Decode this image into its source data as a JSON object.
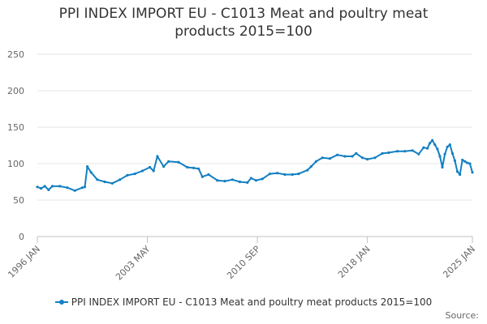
{
  "title_line1": "PPI INDEX IMPORT EU - C1013 Meat and poultry meat",
  "title_line2": "products 2015=100",
  "source_label": "Source:",
  "chart_data": {
    "type": "line",
    "title": "PPI INDEX IMPORT EU - C1013 Meat and poultry meat products 2015=100",
    "xlabel": "",
    "ylabel": "",
    "x_range": [
      "1996 JAN",
      "2025 JAN"
    ],
    "ylim": [
      0,
      250
    ],
    "y_ticks": [
      0,
      50,
      100,
      150,
      200,
      250
    ],
    "x_tick_labels": [
      "1996 JAN",
      "2003 MAY",
      "2010 SEP",
      "2018 JAN",
      "2025 JAN"
    ],
    "grid": true,
    "legend_position": "bottom",
    "series": [
      {
        "name": "PPI INDEX IMPORT EU - C1013 Meat and poultry meat products 2015=100",
        "color": "#1380c2",
        "points": [
          [
            "1996-01",
            68
          ],
          [
            "1996-04",
            66
          ],
          [
            "1996-07",
            69
          ],
          [
            "1996-10",
            64
          ],
          [
            "1997-01",
            69
          ],
          [
            "1997-07",
            69
          ],
          [
            "1998-01",
            67
          ],
          [
            "1998-07",
            63
          ],
          [
            "1999-01",
            67
          ],
          [
            "1999-03",
            68
          ],
          [
            "1999-05",
            96
          ],
          [
            "1999-08",
            88
          ],
          [
            "2000-01",
            78
          ],
          [
            "2000-07",
            75
          ],
          [
            "2001-01",
            73
          ],
          [
            "2001-07",
            78
          ],
          [
            "2002-01",
            84
          ],
          [
            "2002-07",
            86
          ],
          [
            "2003-01",
            90
          ],
          [
            "2003-07",
            95
          ],
          [
            "2003-10",
            90
          ],
          [
            "2004-01",
            110
          ],
          [
            "2004-06",
            96
          ],
          [
            "2004-10",
            103
          ],
          [
            "2005-06",
            102
          ],
          [
            "2006-01",
            95
          ],
          [
            "2006-06",
            94
          ],
          [
            "2006-10",
            93
          ],
          [
            "2007-01",
            82
          ],
          [
            "2007-06",
            85
          ],
          [
            "2008-01",
            77
          ],
          [
            "2008-07",
            76
          ],
          [
            "2009-01",
            78
          ],
          [
            "2009-07",
            75
          ],
          [
            "2010-01",
            74
          ],
          [
            "2010-04",
            80
          ],
          [
            "2010-08",
            77
          ],
          [
            "2011-01",
            79
          ],
          [
            "2011-07",
            86
          ],
          [
            "2012-01",
            87
          ],
          [
            "2012-07",
            85
          ],
          [
            "2013-01",
            85
          ],
          [
            "2013-06",
            86
          ],
          [
            "2014-01",
            91
          ],
          [
            "2014-04",
            96
          ],
          [
            "2014-08",
            103
          ],
          [
            "2015-01",
            108
          ],
          [
            "2015-07",
            107
          ],
          [
            "2016-01",
            112
          ],
          [
            "2016-07",
            110
          ],
          [
            "2017-01",
            110
          ],
          [
            "2017-04",
            114
          ],
          [
            "2017-09",
            108
          ],
          [
            "2018-01",
            106
          ],
          [
            "2018-07",
            108
          ],
          [
            "2019-01",
            114
          ],
          [
            "2019-06",
            115
          ],
          [
            "2020-01",
            117
          ],
          [
            "2020-07",
            117
          ],
          [
            "2021-01",
            118
          ],
          [
            "2021-06",
            113
          ],
          [
            "2021-10",
            122
          ],
          [
            "2022-01",
            121
          ],
          [
            "2022-03",
            128
          ],
          [
            "2022-05",
            132
          ],
          [
            "2022-07",
            126
          ],
          [
            "2022-09",
            120
          ],
          [
            "2022-11",
            110
          ],
          [
            "2023-01",
            95
          ],
          [
            "2023-03",
            113
          ],
          [
            "2023-05",
            123
          ],
          [
            "2023-07",
            126
          ],
          [
            "2023-09",
            114
          ],
          [
            "2023-11",
            104
          ],
          [
            "2024-01",
            89
          ],
          [
            "2024-03",
            85
          ],
          [
            "2024-05",
            105
          ],
          [
            "2024-07",
            103
          ],
          [
            "2024-09",
            101
          ],
          [
            "2024-11",
            100
          ],
          [
            "2025-01",
            88
          ]
        ]
      }
    ]
  }
}
